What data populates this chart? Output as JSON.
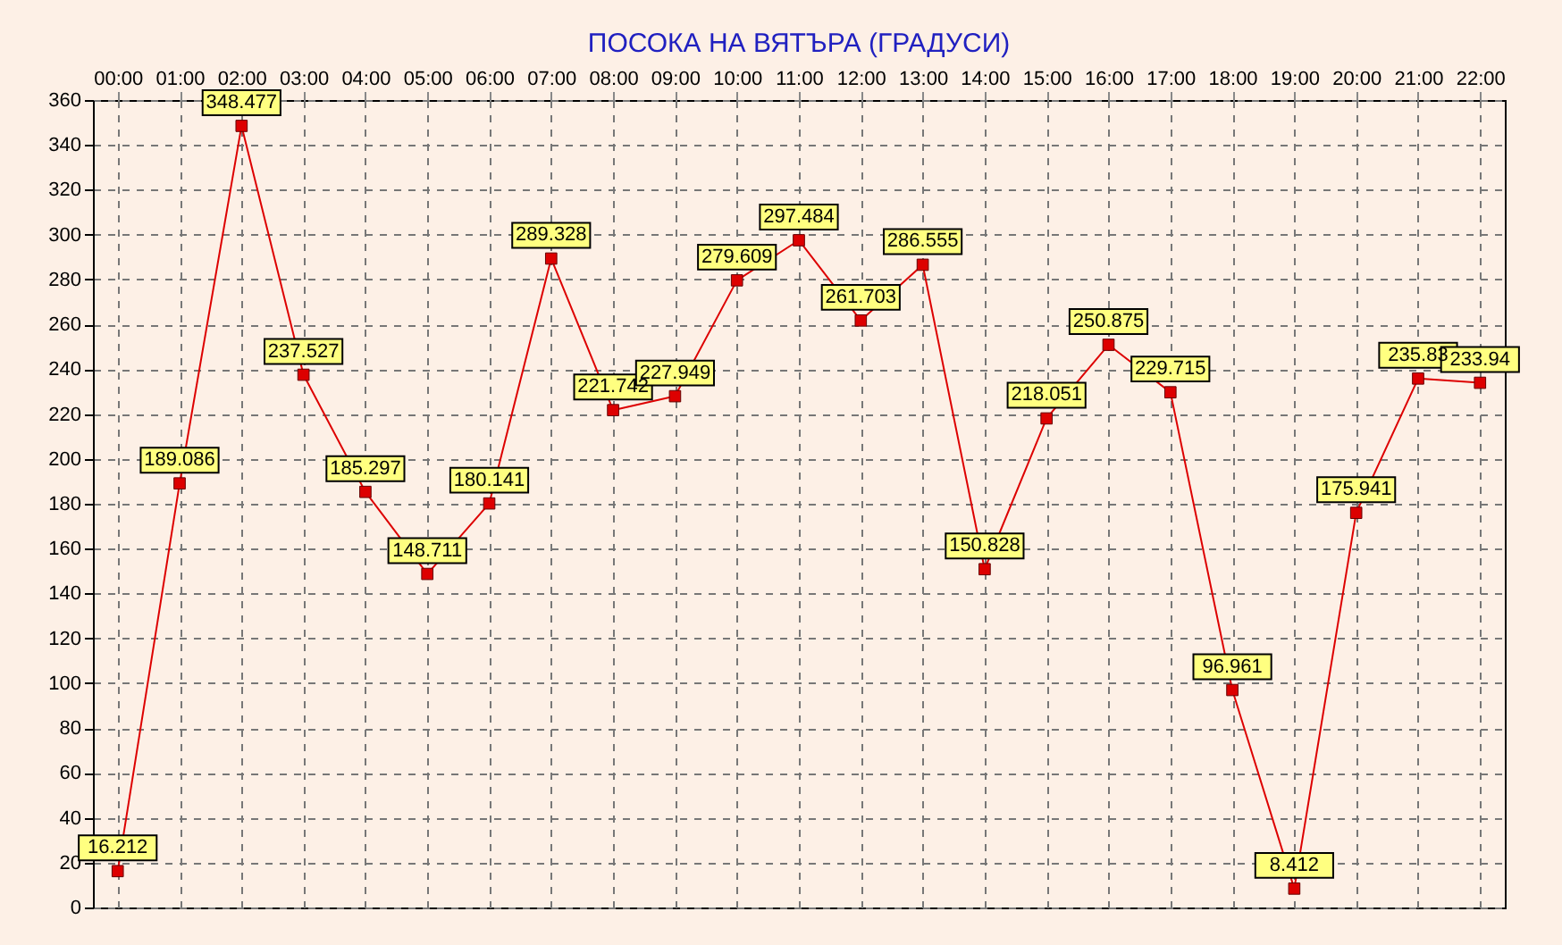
{
  "chart_data": {
    "type": "line",
    "title": "ПОСОКА НА ВЯТЪРА    (ГРАДУСИ)",
    "categories": [
      "00:00",
      "01:00",
      "02:00",
      "03:00",
      "04:00",
      "05:00",
      "06:00",
      "07:00",
      "08:00",
      "09:00",
      "10:00",
      "11:00",
      "12:00",
      "13:00",
      "14:00",
      "15:00",
      "16:00",
      "17:00",
      "18:00",
      "19:00",
      "20:00",
      "21:00",
      "22:00"
    ],
    "series": [
      {
        "color": "#dd0000",
        "values": [
          16.212,
          189.086,
          348.477,
          237.527,
          185.297,
          148.711,
          180.141,
          289.328,
          221.742,
          227.949,
          279.609,
          297.484,
          261.703,
          286.555,
          150.828,
          218.051,
          250.875,
          229.715,
          96.961,
          8.412,
          175.941,
          235.83,
          233.94
        ]
      }
    ],
    "ylim": [
      0,
      360
    ],
    "yticks": [
      0,
      20,
      40,
      60,
      80,
      100,
      120,
      140,
      160,
      180,
      200,
      220,
      240,
      260,
      280,
      300,
      320,
      340,
      360
    ],
    "grid": true,
    "marker": "square",
    "line_style": "solid",
    "data_labels": true
  }
}
